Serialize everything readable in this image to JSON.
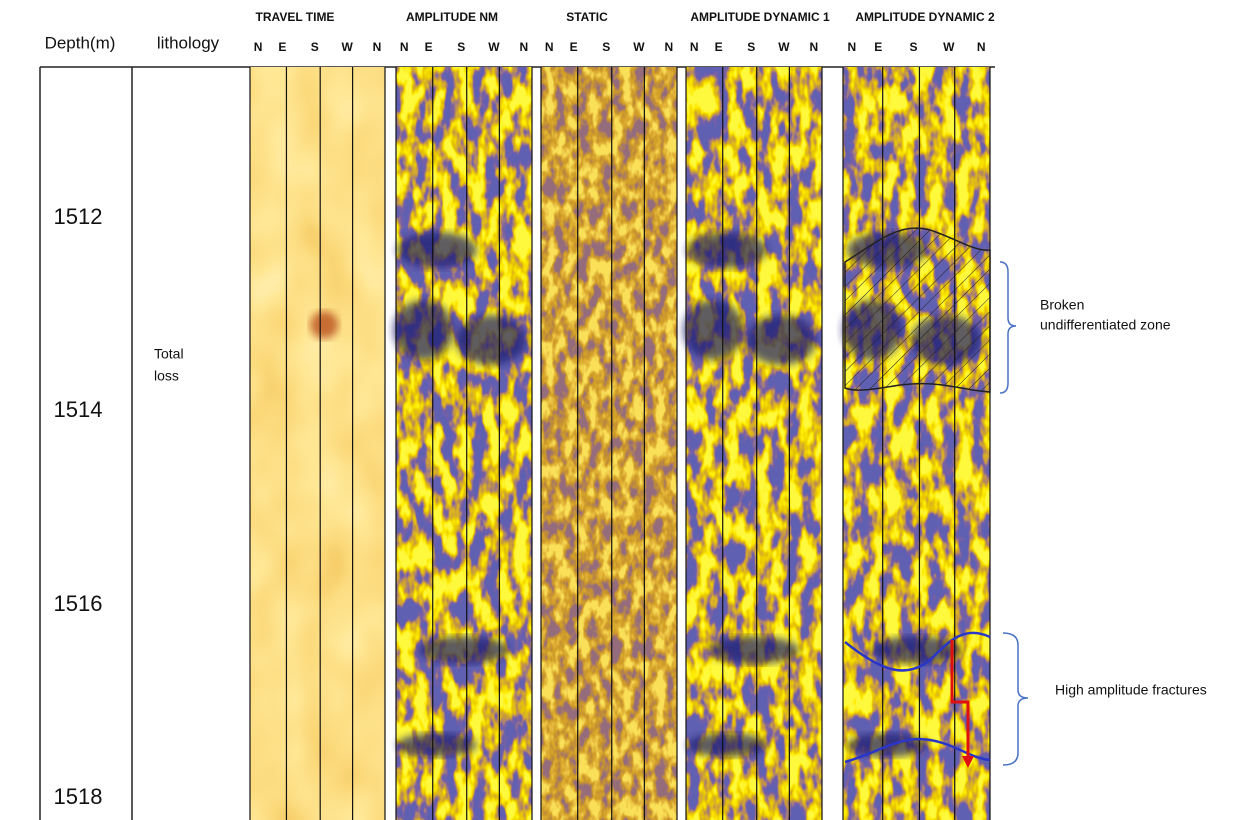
{
  "header": {
    "depth": "Depth(m)",
    "lithology": "lithology"
  },
  "tracks": [
    {
      "title": "TRAVEL TIME",
      "azimuths": [
        "N",
        "E",
        "S",
        "W",
        "N"
      ]
    },
    {
      "title": "AMPLITUDE NM",
      "azimuths": [
        "N",
        "E",
        "S",
        "W",
        "N"
      ]
    },
    {
      "title": "STATIC",
      "azimuths": [
        "N",
        "E",
        "S",
        "W",
        "N"
      ]
    },
    {
      "title": "AMPLITUDE DYNAMIC 1",
      "azimuths": [
        "N",
        "E",
        "S",
        "W",
        "N"
      ]
    },
    {
      "title": "AMPLITUDE DYNAMIC 2",
      "azimuths": [
        "N",
        "E",
        "S",
        "W",
        "N"
      ]
    }
  ],
  "depths": [
    1512,
    1514,
    1516,
    1518
  ],
  "lithology_note": [
    "Total",
    "loss"
  ],
  "annotations": [
    {
      "label": [
        "Broken",
        "undifferentiated zone"
      ]
    },
    {
      "label": [
        "High amplitude fractures"
      ]
    }
  ]
}
